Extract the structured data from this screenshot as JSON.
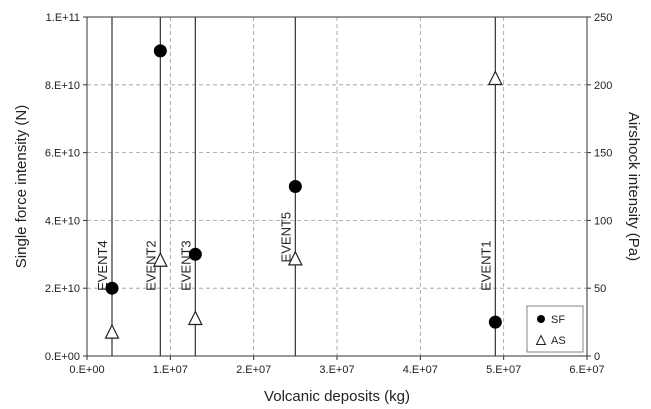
{
  "chart_data": {
    "type": "scatter",
    "xlabel": "Volcanic deposits (kg)",
    "ylabel_left": "Single force intensity (N)",
    "ylabel_right": "Airshock intensity (Pa)",
    "xlim": [
      0,
      60000000
    ],
    "ylim_left": [
      0,
      100000000000
    ],
    "ylim_right": [
      0,
      250
    ],
    "x_ticks": [
      {
        "value": 0,
        "label": "0.E+00"
      },
      {
        "value": 10000000,
        "label": "1.E+07"
      },
      {
        "value": 20000000,
        "label": "2.E+07"
      },
      {
        "value": 30000000,
        "label": "3.E+07"
      },
      {
        "value": 40000000,
        "label": "4.E+07"
      },
      {
        "value": 50000000,
        "label": "5.E+07"
      },
      {
        "value": 60000000,
        "label": "6.E+07"
      }
    ],
    "y_left_ticks": [
      {
        "value": 0,
        "label": "0.E+00"
      },
      {
        "value": 20000000000,
        "label": "2.E+10"
      },
      {
        "value": 40000000000,
        "label": "4.E+10"
      },
      {
        "value": 60000000000,
        "label": "6.E+10"
      },
      {
        "value": 80000000000,
        "label": "8.E+10"
      },
      {
        "value": 100000000000,
        "label": "1.E+11"
      }
    ],
    "y_right_ticks": [
      {
        "value": 0,
        "label": "0"
      },
      {
        "value": 50,
        "label": "50"
      },
      {
        "value": 100,
        "label": "100"
      },
      {
        "value": 150,
        "label": "150"
      },
      {
        "value": 200,
        "label": "200"
      },
      {
        "value": 250,
        "label": "250"
      }
    ],
    "events": [
      {
        "label": "EVENT4",
        "x": 3000000,
        "label_y": 48
      },
      {
        "label": "EVENT2",
        "x": 8800000,
        "label_y": 48
      },
      {
        "label": "EVENT3",
        "x": 13000000,
        "label_y": 48
      },
      {
        "label": "EVENT5",
        "x": 25000000,
        "label_y": 69
      },
      {
        "label": "EVENT1",
        "x": 49000000,
        "label_y": 48
      }
    ],
    "series": [
      {
        "name": "SF",
        "axis": "left",
        "marker": "filled-circle",
        "points": [
          {
            "x": 3000000,
            "y": 20000000000
          },
          {
            "x": 8800000,
            "y": 90000000000
          },
          {
            "x": 13000000,
            "y": 30000000000
          },
          {
            "x": 25000000,
            "y": 50000000000
          },
          {
            "x": 49000000,
            "y": 10000000000
          }
        ]
      },
      {
        "name": "AS",
        "axis": "right",
        "marker": "open-triangle",
        "points": [
          {
            "x": 3000000,
            "y": 18
          },
          {
            "x": 8800000,
            "y": 71
          },
          {
            "x": 13000000,
            "y": 28
          },
          {
            "x": 25000000,
            "y": 72
          },
          {
            "x": 49000000,
            "y": 205
          }
        ]
      }
    ],
    "grid": true,
    "legend": {
      "position": "bottom-right",
      "entries": [
        "SF",
        "AS"
      ]
    }
  }
}
